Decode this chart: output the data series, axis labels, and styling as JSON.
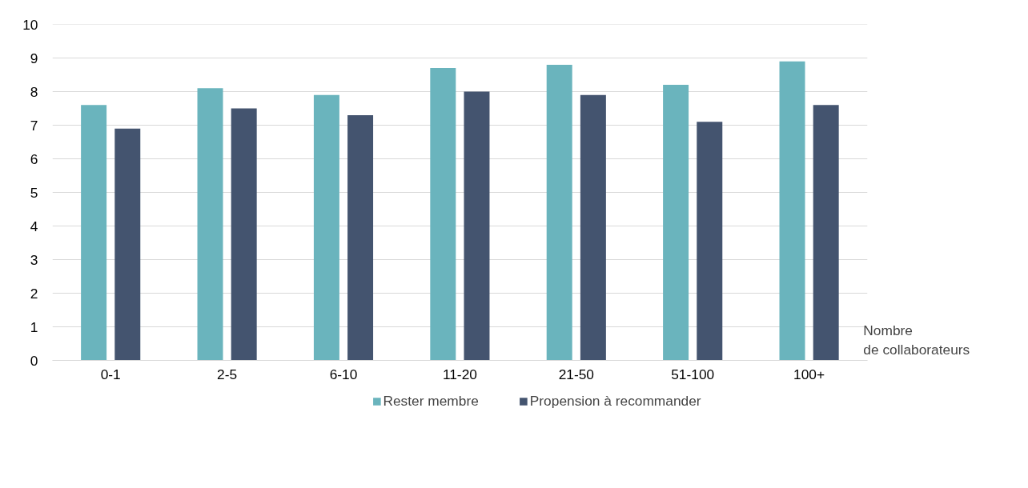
{
  "chart_data": {
    "type": "bar",
    "xlabel": "Nombre\nde collaborateurs",
    "categories": [
      "0-1",
      "2-5",
      "6-10",
      "11-20",
      "21-50",
      "51-100",
      "100+"
    ],
    "series": [
      {
        "name": "Rester membre",
        "color": "#6ab4bd",
        "values": [
          7.6,
          8.1,
          7.9,
          8.7,
          8.8,
          8.2,
          8.9
        ]
      },
      {
        "name": "Propension à recommander",
        "color": "#44546f",
        "values": [
          6.9,
          7.5,
          7.3,
          8.0,
          7.9,
          7.1,
          7.6
        ]
      }
    ],
    "ylim": [
      0,
      10
    ],
    "yticks": [
      0,
      1,
      2,
      3,
      4,
      5,
      6,
      7,
      8,
      9,
      10
    ],
    "grid": "y",
    "legend": "bottom"
  }
}
